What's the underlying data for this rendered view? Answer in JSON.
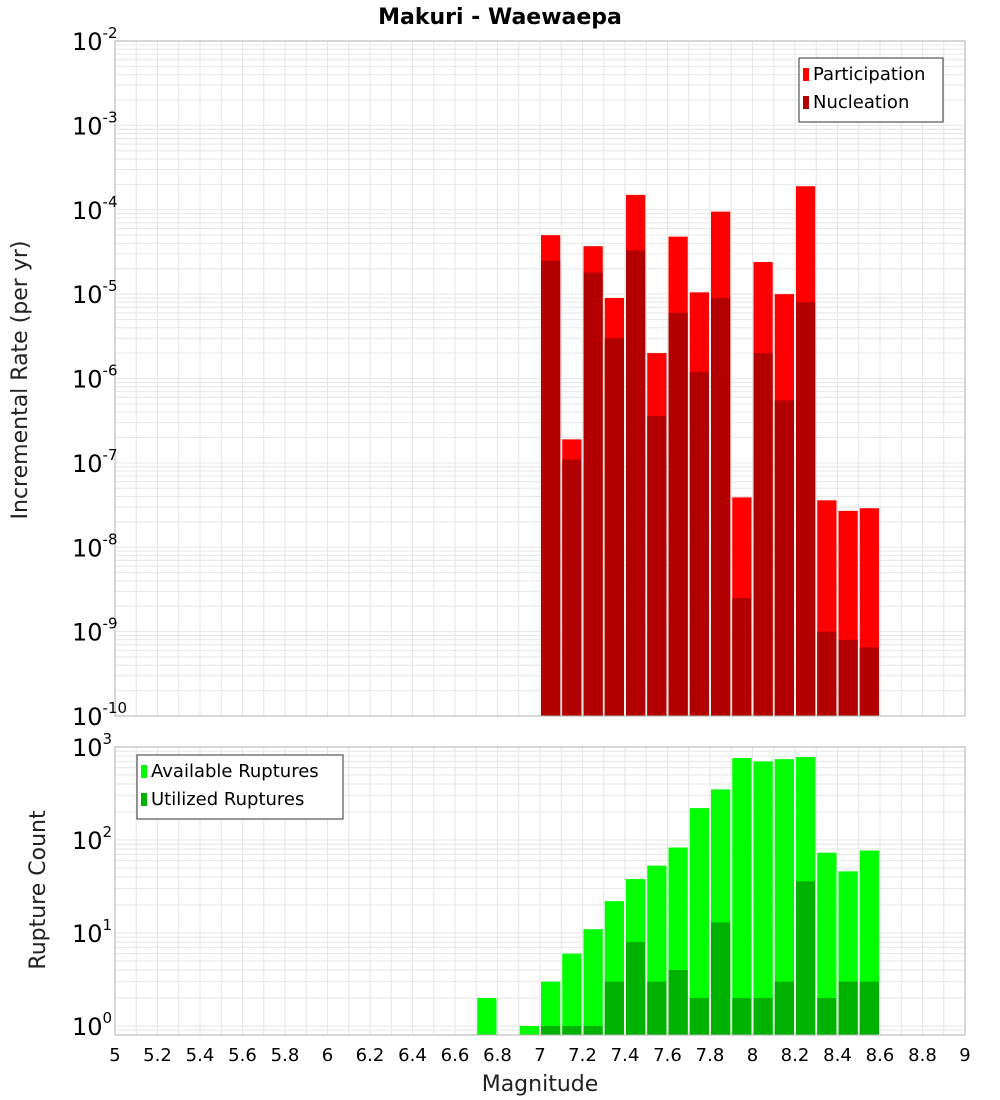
{
  "chart_data": [
    {
      "type": "bar",
      "title": "Makuri - Waewaepa",
      "xlabel": "Magnitude",
      "ylabel": "Incremental Rate (per yr)",
      "yscale": "log",
      "ylim": [
        1e-10,
        0.01
      ],
      "xlim": [
        5,
        9
      ],
      "bin_width": 0.1,
      "legend_position": "top-right",
      "ytick_base": "10",
      "ytick_exponents": [
        "-10",
        "-9",
        "-8",
        "-7",
        "-6",
        "-5",
        "-4",
        "-3",
        "-2"
      ],
      "x": [
        7.05,
        7.15,
        7.25,
        7.35,
        7.45,
        7.55,
        7.65,
        7.75,
        7.85,
        7.95,
        8.05,
        8.15,
        8.25,
        8.35,
        8.45,
        8.55
      ],
      "series": [
        {
          "name": "Participation",
          "color": "#ff0000",
          "values": [
            5e-05,
            1.9e-07,
            3.7e-05,
            9e-06,
            0.00015,
            2e-06,
            4.8e-05,
            1.05e-05,
            9.5e-05,
            3.9e-08,
            2.4e-05,
            1e-05,
            0.00019,
            3.6e-08,
            2.7e-08,
            2.9e-08
          ]
        },
        {
          "name": "Nucleation",
          "color": "#b20000",
          "values": [
            2.5e-05,
            1.1e-07,
            1.8e-05,
            3e-06,
            3.3e-05,
            3.6e-07,
            6e-06,
            1.2e-06,
            9e-06,
            2.5e-09,
            2e-06,
            5.5e-07,
            8e-06,
            1e-09,
            8e-10,
            6.5e-10
          ]
        }
      ]
    },
    {
      "type": "bar",
      "xlabel": "Magnitude",
      "ylabel": "Rupture Count",
      "yscale": "log",
      "ylim": [
        0.8,
        1000
      ],
      "xlim": [
        5,
        9
      ],
      "bin_width": 0.1,
      "legend_position": "top-left",
      "ytick_base": "10",
      "ytick_exponents": [
        "0",
        "1",
        "2",
        "3"
      ],
      "xticks": [
        "5",
        "5.2",
        "5.4",
        "5.6",
        "5.8",
        "6",
        "6.2",
        "6.4",
        "6.6",
        "6.8",
        "7",
        "7.2",
        "7.4",
        "7.6",
        "7.8",
        "8",
        "8.2",
        "8.4",
        "8.6",
        "8.8",
        "9"
      ],
      "x": [
        6.75,
        6.95,
        7.05,
        7.15,
        7.25,
        7.35,
        7.45,
        7.55,
        7.65,
        7.75,
        7.85,
        7.95,
        8.05,
        8.15,
        8.25,
        8.35,
        8.45,
        8.55
      ],
      "series": [
        {
          "name": "Available Ruptures",
          "color": "#00ff00",
          "values": [
            2,
            1,
            3,
            6,
            11,
            22,
            38,
            53,
            83,
            220,
            350,
            760,
            700,
            740,
            780,
            73,
            46,
            77
          ]
        },
        {
          "name": "Utilized Ruptures",
          "color": "#00b200",
          "values": [
            0,
            0,
            1,
            1,
            1,
            3,
            8,
            3,
            4,
            2,
            13,
            2,
            2,
            3,
            36,
            2,
            3,
            3
          ]
        }
      ]
    }
  ]
}
